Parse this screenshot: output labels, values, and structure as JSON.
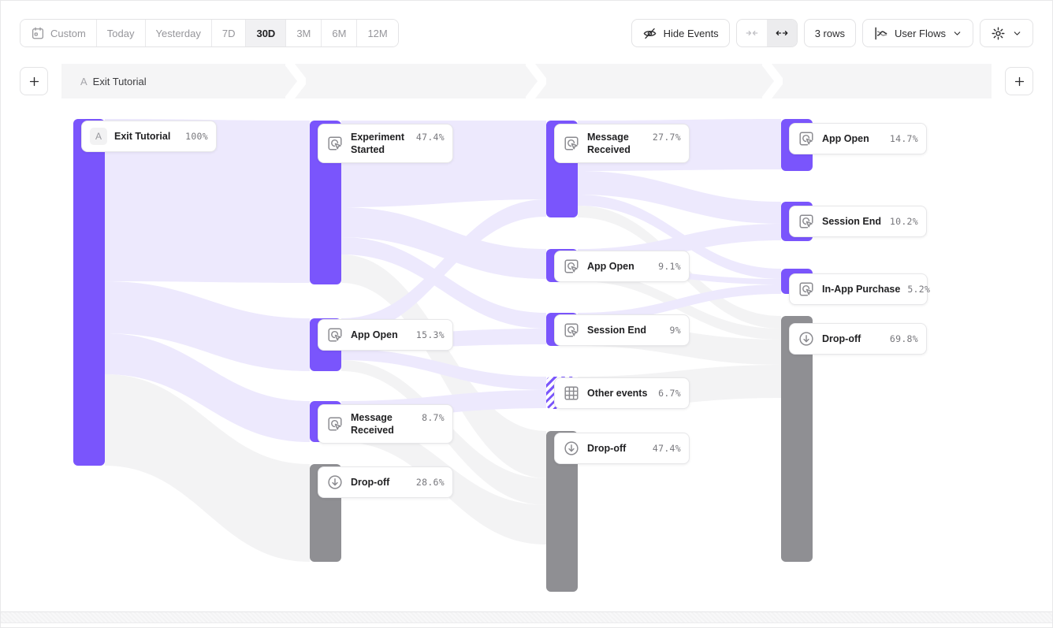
{
  "toolbar": {
    "date_ranges": [
      {
        "label": "Custom",
        "icon": "calendar-icon",
        "active": false
      },
      {
        "label": "Today",
        "active": false
      },
      {
        "label": "Yesterday",
        "active": false
      },
      {
        "label": "7D",
        "active": false
      },
      {
        "label": "30D",
        "active": true
      },
      {
        "label": "3M",
        "active": false
      },
      {
        "label": "6M",
        "active": false
      },
      {
        "label": "12M",
        "active": false
      }
    ],
    "hide_events": "Hide Events",
    "rows": "3 rows",
    "view": "User Flows"
  },
  "step_header": {
    "prefix": "A",
    "label": "Exit Tutorial"
  },
  "chart_data": {
    "type": "sankey",
    "start_event": "Exit Tutorial",
    "selected_range": "30D",
    "columns": [
      {
        "step": 0,
        "nodes": [
          {
            "label": "Exit Tutorial",
            "pct": "100%",
            "kind": "start"
          }
        ]
      },
      {
        "step": 1,
        "nodes": [
          {
            "label": "Experiment Started",
            "pct": "47.4%",
            "kind": "event"
          },
          {
            "label": "App Open",
            "pct": "15.3%",
            "kind": "event"
          },
          {
            "label": "Message Received",
            "pct": "8.7%",
            "kind": "event"
          },
          {
            "label": "Drop-off",
            "pct": "28.6%",
            "kind": "dropoff"
          }
        ]
      },
      {
        "step": 2,
        "nodes": [
          {
            "label": "Message Received",
            "pct": "27.7%",
            "kind": "event"
          },
          {
            "label": "App Open",
            "pct": "9.1%",
            "kind": "event"
          },
          {
            "label": "Session End",
            "pct": "9%",
            "kind": "event"
          },
          {
            "label": "Other events",
            "pct": "6.7%",
            "kind": "other"
          },
          {
            "label": "Drop-off",
            "pct": "47.4%",
            "kind": "dropoff"
          }
        ]
      },
      {
        "step": 3,
        "nodes": [
          {
            "label": "App Open",
            "pct": "14.7%",
            "kind": "event"
          },
          {
            "label": "Session End",
            "pct": "10.2%",
            "kind": "event"
          },
          {
            "label": "In-App Purchase",
            "pct": "5.2%",
            "kind": "event"
          },
          {
            "label": "Drop-off",
            "pct": "69.8%",
            "kind": "dropoff"
          }
        ]
      }
    ],
    "links": [
      {
        "source": [
          0,
          0
        ],
        "target": [
          1,
          0
        ]
      },
      {
        "source": [
          0,
          0
        ],
        "target": [
          1,
          1
        ]
      },
      {
        "source": [
          0,
          0
        ],
        "target": [
          1,
          2
        ]
      },
      {
        "source": [
          0,
          0
        ],
        "target": [
          1,
          3
        ]
      },
      {
        "source": [
          1,
          0
        ],
        "target": [
          2,
          0
        ]
      },
      {
        "source": [
          1,
          0
        ],
        "target": [
          2,
          1
        ]
      },
      {
        "source": [
          1,
          0
        ],
        "target": [
          2,
          2
        ]
      },
      {
        "source": [
          1,
          0
        ],
        "target": [
          2,
          4
        ]
      },
      {
        "source": [
          1,
          1
        ],
        "target": [
          2,
          0
        ]
      },
      {
        "source": [
          1,
          1
        ],
        "target": [
          2,
          2
        ]
      },
      {
        "source": [
          1,
          1
        ],
        "target": [
          2,
          3
        ]
      },
      {
        "source": [
          1,
          1
        ],
        "target": [
          2,
          4
        ]
      },
      {
        "source": [
          1,
          2
        ],
        "target": [
          2,
          3
        ]
      },
      {
        "source": [
          1,
          2
        ],
        "target": [
          2,
          4
        ]
      },
      {
        "source": [
          2,
          0
        ],
        "target": [
          3,
          0
        ]
      },
      {
        "source": [
          2,
          0
        ],
        "target": [
          3,
          1
        ]
      },
      {
        "source": [
          2,
          0
        ],
        "target": [
          3,
          2
        ]
      },
      {
        "source": [
          2,
          0
        ],
        "target": [
          3,
          3
        ]
      },
      {
        "source": [
          2,
          1
        ],
        "target": [
          3,
          1
        ]
      },
      {
        "source": [
          2,
          1
        ],
        "target": [
          3,
          2
        ]
      },
      {
        "source": [
          2,
          1
        ],
        "target": [
          3,
          3
        ]
      },
      {
        "source": [
          2,
          2
        ],
        "target": [
          3,
          2
        ]
      },
      {
        "source": [
          2,
          2
        ],
        "target": [
          3,
          3
        ]
      },
      {
        "source": [
          2,
          3
        ],
        "target": [
          3,
          3
        ]
      }
    ],
    "colors": {
      "event_bar": "#7A55FC",
      "dropoff_bar": "#8F8F93",
      "link": "#EDE9FD",
      "link_dropoff": "#F3F3F4"
    }
  }
}
